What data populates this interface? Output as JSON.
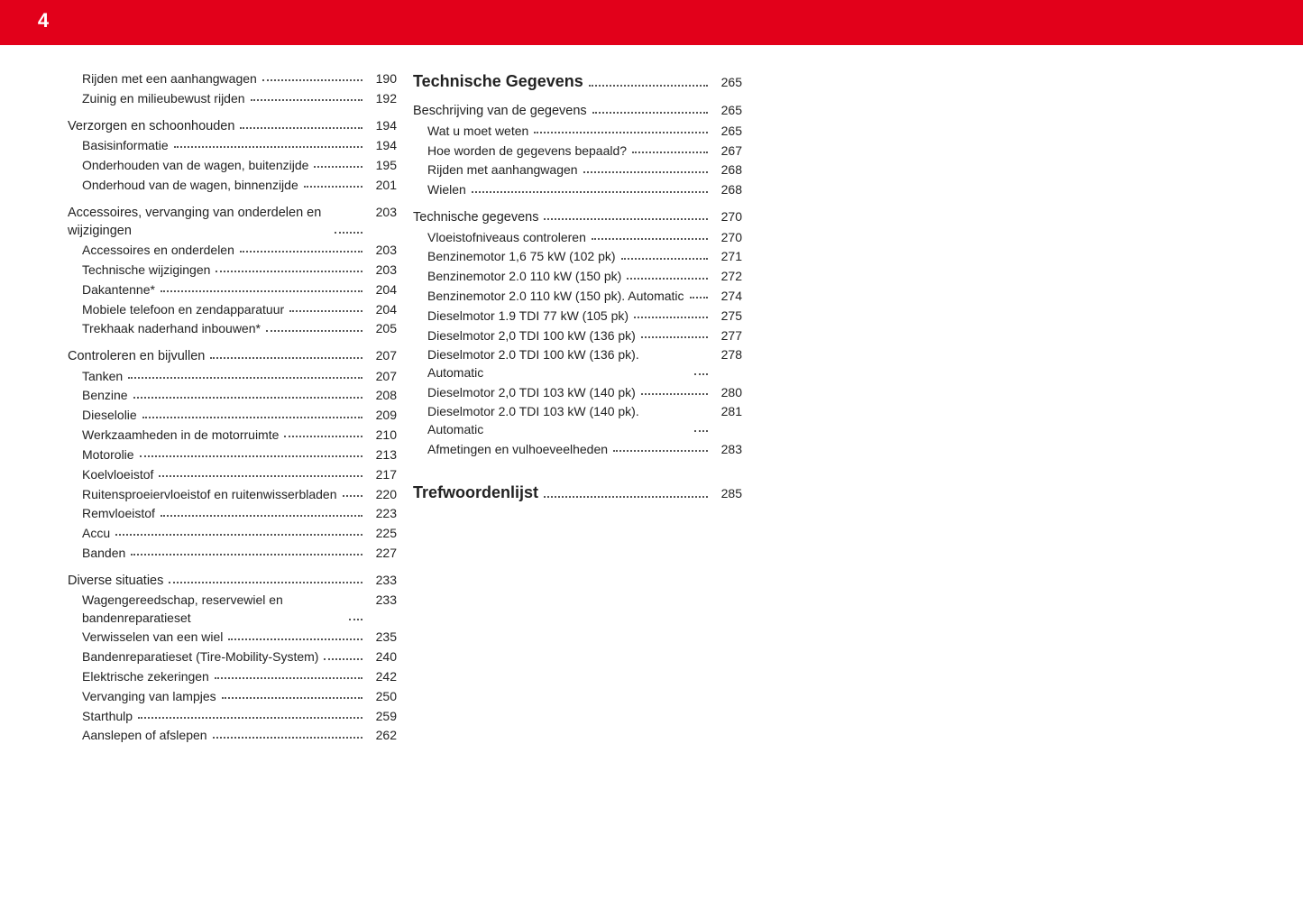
{
  "page_number": "4",
  "colors": {
    "accent": "#e2001a",
    "text": "#222222",
    "background": "#ffffff"
  },
  "columns": [
    {
      "entries": [
        {
          "label": "Rijden met een aanhangwagen",
          "page": "190",
          "level": 2
        },
        {
          "label": "Zuinig en milieubewust rijden",
          "page": "192",
          "level": 2
        },
        {
          "gap": true
        },
        {
          "label": "Verzorgen en schoonhouden",
          "page": "194",
          "level": 1,
          "heading": 2
        },
        {
          "label": "Basisinformatie",
          "page": "194",
          "level": 2
        },
        {
          "label": "Onderhouden van de wagen, buitenzijde",
          "page": "195",
          "level": 2
        },
        {
          "label": "Onderhoud van de wagen, binnenzijde",
          "page": "201",
          "level": 2
        },
        {
          "gap": true
        },
        {
          "label": "Accessoires, vervanging van onderdelen en wijzigingen",
          "page": "203",
          "level": 1,
          "heading": 2
        },
        {
          "label": "Accessoires en onderdelen",
          "page": "203",
          "level": 2
        },
        {
          "label": "Technische wijzigingen",
          "page": "203",
          "level": 2
        },
        {
          "label": "Dakantenne*",
          "page": "204",
          "level": 2
        },
        {
          "label": "Mobiele telefoon en zendapparatuur",
          "page": "204",
          "level": 2
        },
        {
          "label": "Trekhaak naderhand inbouwen*",
          "page": "205",
          "level": 2
        },
        {
          "gap": true
        },
        {
          "label": "Controleren en bijvullen",
          "page": "207",
          "level": 1,
          "heading": 2
        },
        {
          "label": "Tanken",
          "page": "207",
          "level": 2
        },
        {
          "label": "Benzine",
          "page": "208",
          "level": 2
        },
        {
          "label": "Dieselolie",
          "page": "209",
          "level": 2
        },
        {
          "label": "Werkzaamheden in de motorruimte",
          "page": "210",
          "level": 2
        },
        {
          "label": "Motorolie",
          "page": "213",
          "level": 2
        },
        {
          "label": "Koelvloeistof",
          "page": "217",
          "level": 2
        },
        {
          "label": "Ruitensproeiervloeistof en ruitenwisserbladen",
          "page": "220",
          "level": 2
        },
        {
          "label": "Remvloeistof",
          "page": "223",
          "level": 2
        },
        {
          "label": "Accu",
          "page": "225",
          "level": 2
        },
        {
          "label": "Banden",
          "page": "227",
          "level": 2
        },
        {
          "gap": true
        },
        {
          "label": "Diverse situaties",
          "page": "233",
          "level": 1,
          "heading": 2
        },
        {
          "label": "Wagengereedschap, reservewiel en bandenreparatieset",
          "page": "233",
          "level": 2
        },
        {
          "label": "Verwisselen van een wiel",
          "page": "235",
          "level": 2
        },
        {
          "label": "Bandenreparatieset (Tire-Mobility-System)",
          "page": "240",
          "level": 2
        },
        {
          "label": "Elektrische zekeringen",
          "page": "242",
          "level": 2
        },
        {
          "label": "Vervanging van lampjes",
          "page": "250",
          "level": 2
        },
        {
          "label": "Starthulp",
          "page": "259",
          "level": 2
        },
        {
          "label": "Aanslepen of afslepen",
          "page": "262",
          "level": 2
        }
      ]
    },
    {
      "entries": [
        {
          "label": "Technische Gegevens",
          "page": "265",
          "level": 1,
          "heading": 1
        },
        {
          "gap": true
        },
        {
          "label": "Beschrijving van de gegevens",
          "page": "265",
          "level": 1,
          "heading": 2
        },
        {
          "label": "Wat u moet weten",
          "page": "265",
          "level": 2
        },
        {
          "label": "Hoe worden de gegevens bepaald?",
          "page": "267",
          "level": 2
        },
        {
          "label": "Rijden met aanhangwagen",
          "page": "268",
          "level": 2
        },
        {
          "label": "Wielen",
          "page": "268",
          "level": 2
        },
        {
          "gap": true
        },
        {
          "label": "Technische gegevens",
          "page": "270",
          "level": 1,
          "heading": 2
        },
        {
          "label": "Vloeistofniveaus controleren",
          "page": "270",
          "level": 2
        },
        {
          "label": "Benzinemotor 1,6 75 kW (102 pk)",
          "page": "271",
          "level": 2
        },
        {
          "label": "Benzinemotor 2.0 110 kW (150 pk)",
          "page": "272",
          "level": 2
        },
        {
          "label": "Benzinemotor 2.0 110 kW (150 pk). Automatic",
          "page": "274",
          "level": 2
        },
        {
          "label": "Dieselmotor 1.9 TDI 77 kW (105 pk)",
          "page": "275",
          "level": 2
        },
        {
          "label": "Dieselmotor 2,0 TDI 100 kW (136 pk)",
          "page": "277",
          "level": 2
        },
        {
          "label": "Dieselmotor 2.0 TDI 100 kW (136 pk). Automatic",
          "page": "278",
          "level": 2
        },
        {
          "label": "Dieselmotor 2,0 TDI 103 kW (140 pk)",
          "page": "280",
          "level": 2
        },
        {
          "label": "Dieselmotor 2.0 TDI 103 kW (140 pk). Automatic",
          "page": "281",
          "level": 2
        },
        {
          "label": "Afmetingen en vulhoeveelheden",
          "page": "283",
          "level": 2
        },
        {
          "gap": true
        },
        {
          "gap": true
        },
        {
          "gap": true
        },
        {
          "label": "Trefwoordenlijst",
          "page": "285",
          "level": 1,
          "heading": 1
        }
      ]
    }
  ]
}
